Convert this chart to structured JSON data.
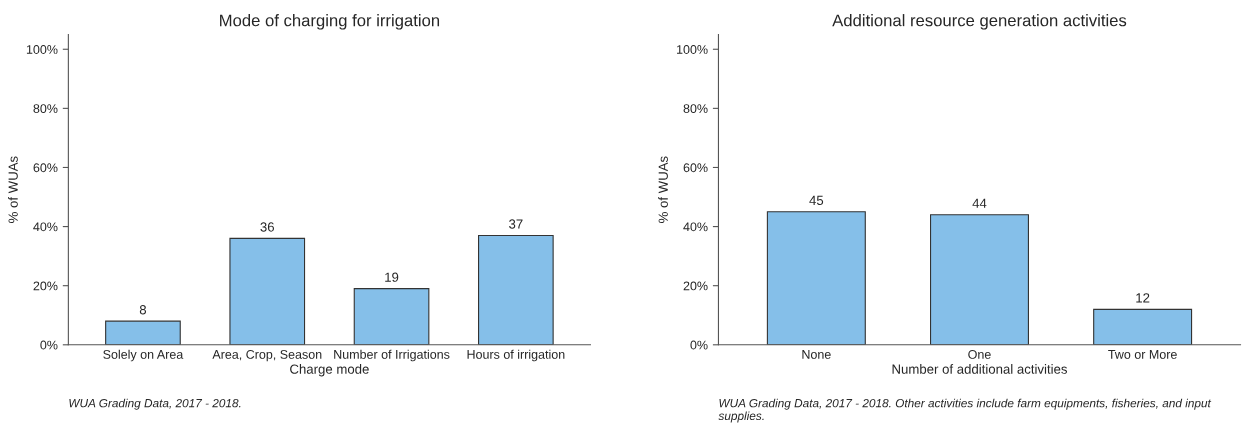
{
  "chart_data": [
    {
      "type": "bar",
      "title": "Mode of charging for irrigation",
      "xlabel": "Charge mode",
      "ylabel": "% of WUAs",
      "categories": [
        "Solely on Area",
        "Area, Crop, Season",
        "Number of Irrigations",
        "Hours of irrigation"
      ],
      "values": [
        8,
        36,
        19,
        37
      ],
      "color": "#85bfe9",
      "data_labels": true,
      "grid": false,
      "ylim": [
        0,
        105
      ],
      "yticks": [
        {
          "value": 0,
          "label": "0%"
        },
        {
          "value": 20,
          "label": "20%"
        },
        {
          "value": 40,
          "label": "40%"
        },
        {
          "value": 60,
          "label": "60%"
        },
        {
          "value": 80,
          "label": "80%"
        },
        {
          "value": 100,
          "label": "100%"
        }
      ],
      "annotations": [
        "WUA Grading Data, 2017 - 2018."
      ]
    },
    {
      "type": "bar",
      "title": "Additional resource generation activities",
      "xlabel": "Number of additional activities",
      "ylabel": "% of WUAs",
      "categories": [
        "None",
        "One",
        "Two or More"
      ],
      "values": [
        45,
        44,
        12
      ],
      "color": "#85bfe9",
      "data_labels": true,
      "grid": false,
      "ylim": [
        0,
        105
      ],
      "yticks": [
        {
          "value": 0,
          "label": "0%"
        },
        {
          "value": 20,
          "label": "20%"
        },
        {
          "value": 40,
          "label": "40%"
        },
        {
          "value": 60,
          "label": "60%"
        },
        {
          "value": 80,
          "label": "80%"
        },
        {
          "value": 100,
          "label": "100%"
        }
      ],
      "annotations": [
        "WUA Grading Data, 2017 - 2018. Other activities include farm equipments, fisheries, and input supplies."
      ]
    }
  ]
}
